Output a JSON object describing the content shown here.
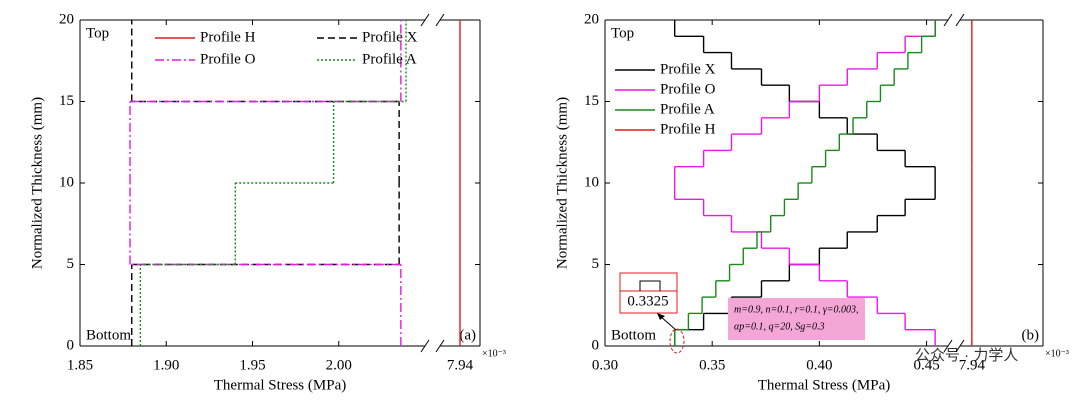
{
  "chart_data": [
    {
      "type": "step",
      "x_label": "Thermal Stress (MPa)",
      "y_label": "Normalized Thickness (mm)",
      "x_exponent": "×10⁻³",
      "top_label": "Top",
      "bottom_label": "Bottom",
      "panel_label": "(a)",
      "xlim": [
        1.85,
        2.05
      ],
      "break_xlim": [
        7.932,
        7.948
      ],
      "ylim": [
        0,
        20
      ],
      "xticks": [
        1.85,
        {
          "value": 1.9,
          "label": "1.90"
        },
        1.95,
        {
          "value": 2,
          "label": "2.00"
        },
        7.94
      ],
      "yticks": [
        0,
        5,
        10,
        15,
        20
      ],
      "y_edges": [
        0,
        5,
        10,
        15,
        20
      ],
      "series": [
        {
          "name": "Profile H",
          "color": "#e41a1c",
          "style": "solid",
          "values": [
            7.94,
            7.94,
            7.94,
            7.94
          ]
        },
        {
          "name": "Profile X",
          "color": "#000000",
          "style": "dashed",
          "values": [
            1.88,
            2.035,
            2.035,
            1.88
          ]
        },
        {
          "name": "Profile O",
          "color": "#e619e6",
          "style": "dashdot",
          "values": [
            2.036,
            1.879,
            1.879,
            2.036
          ]
        },
        {
          "name": "Profile A",
          "color": "#1a8a1a",
          "style": "dotted",
          "values": [
            1.885,
            1.94,
            1.997,
            2.039
          ]
        }
      ]
    },
    {
      "type": "step",
      "x_label": "Thermal Stress (MPa)",
      "y_label": "Normalized Thickness (mm)",
      "x_exponent": "×10⁻³",
      "top_label": "Top",
      "bottom_label": "Bottom",
      "panel_label": "(b)",
      "inset_label": "0.3325",
      "params": [
        "m=0.9, n=0.1, r=0.1, γ=0.003,",
        "αp=0.1, q=20, Sg=0.3"
      ],
      "watermark": "公众号 · 力学人",
      "xlim": [
        0.3,
        0.46
      ],
      "break_xlim": [
        7.935,
        7.97
      ],
      "ylim": [
        0,
        20
      ],
      "xticks": [
        {
          "value": 0.3,
          "label": "0.30"
        },
        0.35,
        {
          "value": 0.4,
          "label": "0.40"
        },
        0.45,
        7.94
      ],
      "yticks": [
        0,
        5,
        10,
        15,
        20
      ],
      "y_edges": [
        0,
        1,
        2,
        3,
        4,
        5,
        6,
        7,
        8,
        9,
        10,
        11,
        12,
        13,
        14,
        15,
        16,
        17,
        18,
        19,
        20
      ],
      "series": [
        {
          "name": "Profile X",
          "color": "#000000",
          "style": "solid",
          "values": [
            0.3325,
            0.346,
            0.359,
            0.373,
            0.386,
            0.4,
            0.413,
            0.427,
            0.44,
            0.454,
            0.454,
            0.44,
            0.427,
            0.413,
            0.4,
            0.386,
            0.373,
            0.359,
            0.346,
            0.3325
          ]
        },
        {
          "name": "Profile O",
          "color": "#e619e6",
          "style": "solid",
          "values": [
            0.454,
            0.44,
            0.427,
            0.413,
            0.4,
            0.386,
            0.373,
            0.359,
            0.346,
            0.3325,
            0.3325,
            0.346,
            0.359,
            0.373,
            0.386,
            0.4,
            0.413,
            0.427,
            0.44,
            0.454
          ]
        },
        {
          "name": "Profile A",
          "color": "#1a8a1a",
          "style": "solid",
          "values": [
            0.3325,
            0.3389,
            0.3453,
            0.3517,
            0.3581,
            0.3645,
            0.3709,
            0.3773,
            0.3837,
            0.3901,
            0.3965,
            0.4029,
            0.4093,
            0.4157,
            0.4221,
            0.4285,
            0.4349,
            0.4413,
            0.4477,
            0.4541
          ]
        },
        {
          "name": "Profile H",
          "color": "#e41a1c",
          "style": "solid",
          "values": [
            7.94,
            7.94,
            7.94,
            7.94,
            7.94,
            7.94,
            7.94,
            7.94,
            7.94,
            7.94,
            7.94,
            7.94,
            7.94,
            7.94,
            7.94,
            7.94,
            7.94,
            7.94,
            7.94,
            7.94
          ]
        }
      ]
    }
  ]
}
